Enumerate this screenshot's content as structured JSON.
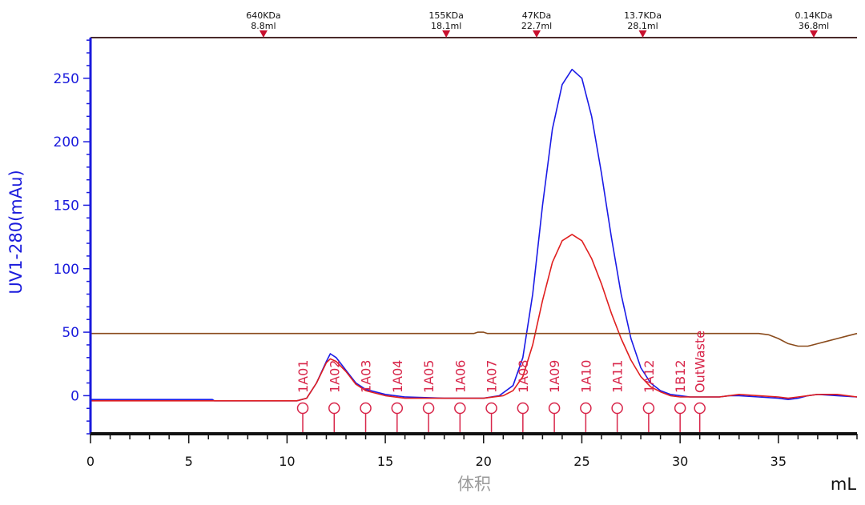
{
  "chart_data": {
    "type": "line",
    "ylabel": "UV1-280(mAu)",
    "xlabel": "体积",
    "xunit": "mL",
    "xlim": [
      0,
      39
    ],
    "ylim": [
      -30,
      282
    ],
    "xticks": [
      0,
      5,
      10,
      15,
      20,
      25,
      30,
      35
    ],
    "yticks": [
      0,
      50,
      100,
      150,
      200,
      250
    ],
    "colors": {
      "axis_y": "#1a1adc",
      "axis_x": "#111111",
      "marker": "#c8102e",
      "fraction": "#d8264a"
    },
    "series": [
      {
        "color": "#1a1ae6",
        "x": [
          0,
          6.2,
          6.3,
          10.5,
          11.0,
          11.5,
          12.0,
          12.2,
          12.5,
          13.0,
          13.5,
          14.0,
          15.0,
          16.0,
          18.0,
          20.0,
          20.8,
          21.5,
          22.0,
          22.5,
          23.0,
          23.5,
          24.0,
          24.5,
          25.0,
          25.5,
          26.0,
          26.5,
          27.0,
          27.5,
          28.0,
          28.5,
          29.0,
          29.5,
          30.0,
          30.5,
          31.0,
          32.0,
          32.5,
          33.0,
          34.0,
          35.0,
          35.5,
          36.0,
          36.5,
          37.0,
          38.0,
          39.0
        ],
        "y": [
          -3,
          -3,
          -4,
          -4,
          -2,
          10,
          27,
          33,
          30,
          20,
          10,
          5,
          1,
          -1,
          -2,
          -2,
          0,
          8,
          30,
          80,
          150,
          210,
          245,
          257,
          250,
          220,
          175,
          125,
          80,
          45,
          22,
          10,
          4,
          1,
          0,
          -1,
          -1,
          -1,
          0,
          0,
          -1,
          -2,
          -3,
          -2,
          0,
          1,
          0,
          -1
        ]
      },
      {
        "color": "#e01f1f",
        "x": [
          0,
          10.5,
          11.0,
          11.5,
          12.0,
          12.2,
          12.5,
          13.0,
          13.5,
          14.0,
          15.0,
          16.0,
          18.0,
          20.0,
          21.0,
          21.5,
          22.0,
          22.5,
          23.0,
          23.5,
          24.0,
          24.5,
          25.0,
          25.5,
          26.0,
          26.5,
          27.0,
          27.5,
          28.0,
          28.5,
          29.0,
          29.5,
          30.0,
          31.0,
          32.0,
          32.5,
          33.0,
          34.0,
          35.0,
          35.5,
          36.0,
          36.5,
          37.0,
          38.0,
          39.0
        ],
        "y": [
          -4,
          -4,
          -2,
          10,
          26,
          29,
          27,
          19,
          9,
          4,
          0,
          -2,
          -2,
          -2,
          0,
          4,
          15,
          40,
          75,
          105,
          122,
          127,
          122,
          108,
          88,
          65,
          45,
          28,
          15,
          7,
          3,
          0,
          -1,
          -1,
          -1,
          0,
          1,
          0,
          -1,
          -2,
          -1,
          0,
          1,
          1,
          -1
        ]
      },
      {
        "color": "#8a4b1c",
        "x": [
          0,
          19.5,
          19.7,
          20.0,
          20.2,
          33.5,
          34.0,
          34.5,
          35.0,
          35.5,
          36.0,
          36.5,
          37.0,
          37.5,
          38.0,
          38.5,
          39.0
        ],
        "y": [
          49,
          49,
          50,
          50,
          49,
          49,
          49,
          48,
          45,
          41,
          39,
          39,
          41,
          43,
          45,
          47,
          49
        ]
      }
    ],
    "markers": [
      {
        "x": 8.8,
        "mass": "640KDa",
        "volume": "8.8ml"
      },
      {
        "x": 18.1,
        "mass": "155KDa",
        "volume": "18.1ml"
      },
      {
        "x": 22.7,
        "mass": "47KDa",
        "volume": "22.7ml"
      },
      {
        "x": 28.1,
        "mass": "13.7KDa",
        "volume": "28.1ml"
      },
      {
        "x": 36.8,
        "mass": "0.14KDa",
        "volume": "36.8ml"
      }
    ],
    "fractions": [
      {
        "label": "1A01",
        "x": 10.8
      },
      {
        "label": "1A02",
        "x": 12.4
      },
      {
        "label": "1A03",
        "x": 14.0
      },
      {
        "label": "1A04",
        "x": 15.6
      },
      {
        "label": "1A05",
        "x": 17.2
      },
      {
        "label": "1A06",
        "x": 18.8
      },
      {
        "label": "1A07",
        "x": 20.4
      },
      {
        "label": "1A08",
        "x": 22.0
      },
      {
        "label": "1A09",
        "x": 23.6
      },
      {
        "label": "1A10",
        "x": 25.2
      },
      {
        "label": "1A11",
        "x": 26.8
      },
      {
        "label": "1A12",
        "x": 28.4
      },
      {
        "label": "1B12",
        "x": 30.0
      },
      {
        "label": "OutWaste",
        "x": 31.0
      }
    ]
  }
}
